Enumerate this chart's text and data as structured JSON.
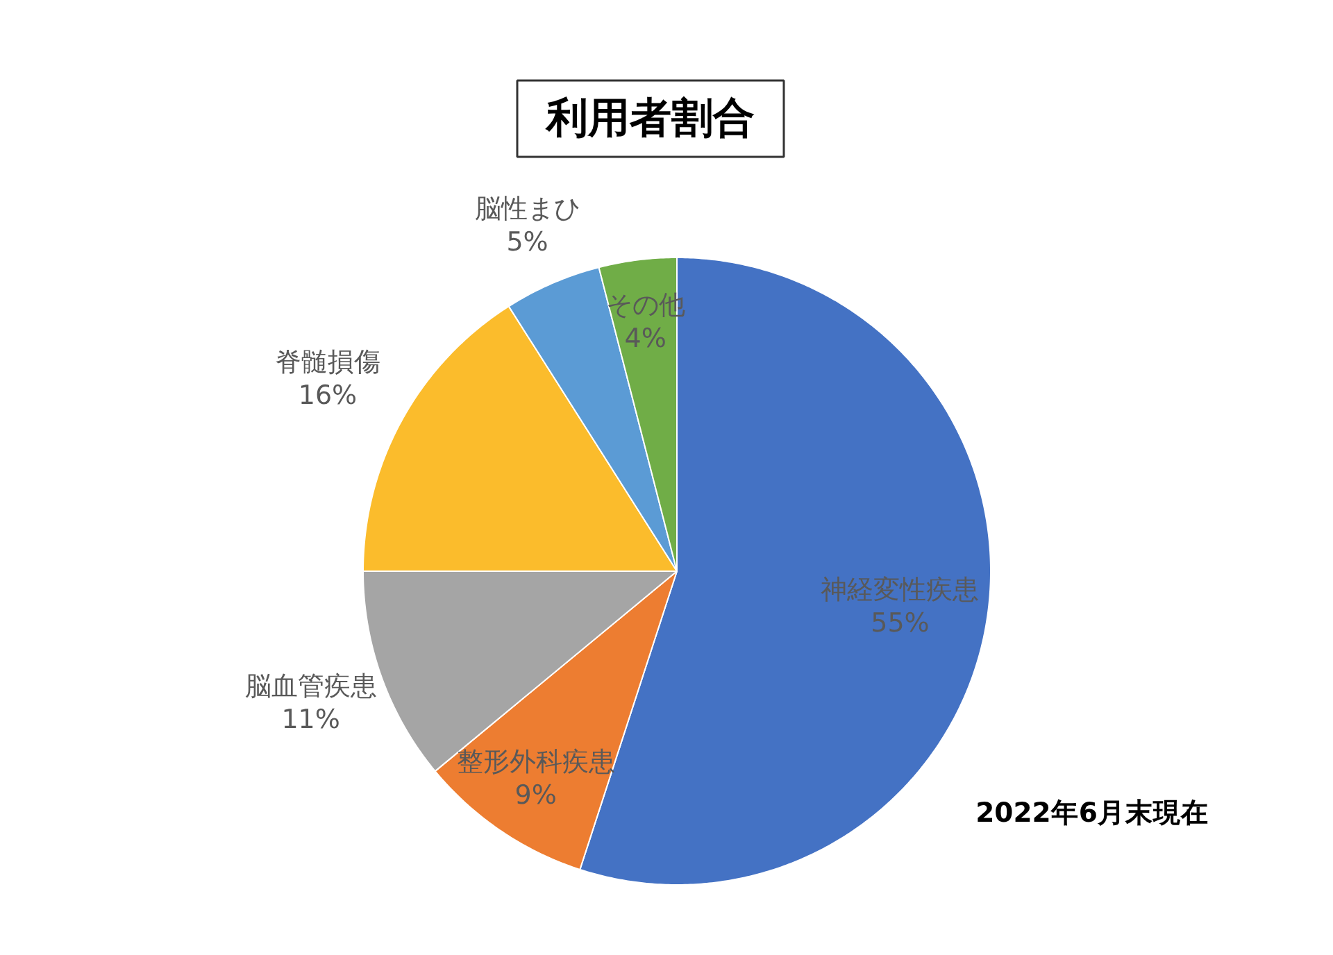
{
  "chart_data": {
    "type": "pie",
    "title": "利用者割合",
    "categories": [
      "神経変性疾患",
      "整形外科疾患",
      "脳血管疾患",
      "脊髄損傷",
      "脳性まひ",
      "その他"
    ],
    "values": [
      55,
      9,
      11,
      16,
      5,
      4
    ],
    "colors": [
      "#4472c4",
      "#ed7d31",
      "#a5a5a5",
      "#fbbc2c",
      "#5b9bd5",
      "#70ad47"
    ],
    "value_labels": [
      "55%",
      "9%",
      "11%",
      "16%",
      "5%",
      "4%"
    ],
    "annotations": [
      "2022年6月末現在"
    ]
  }
}
